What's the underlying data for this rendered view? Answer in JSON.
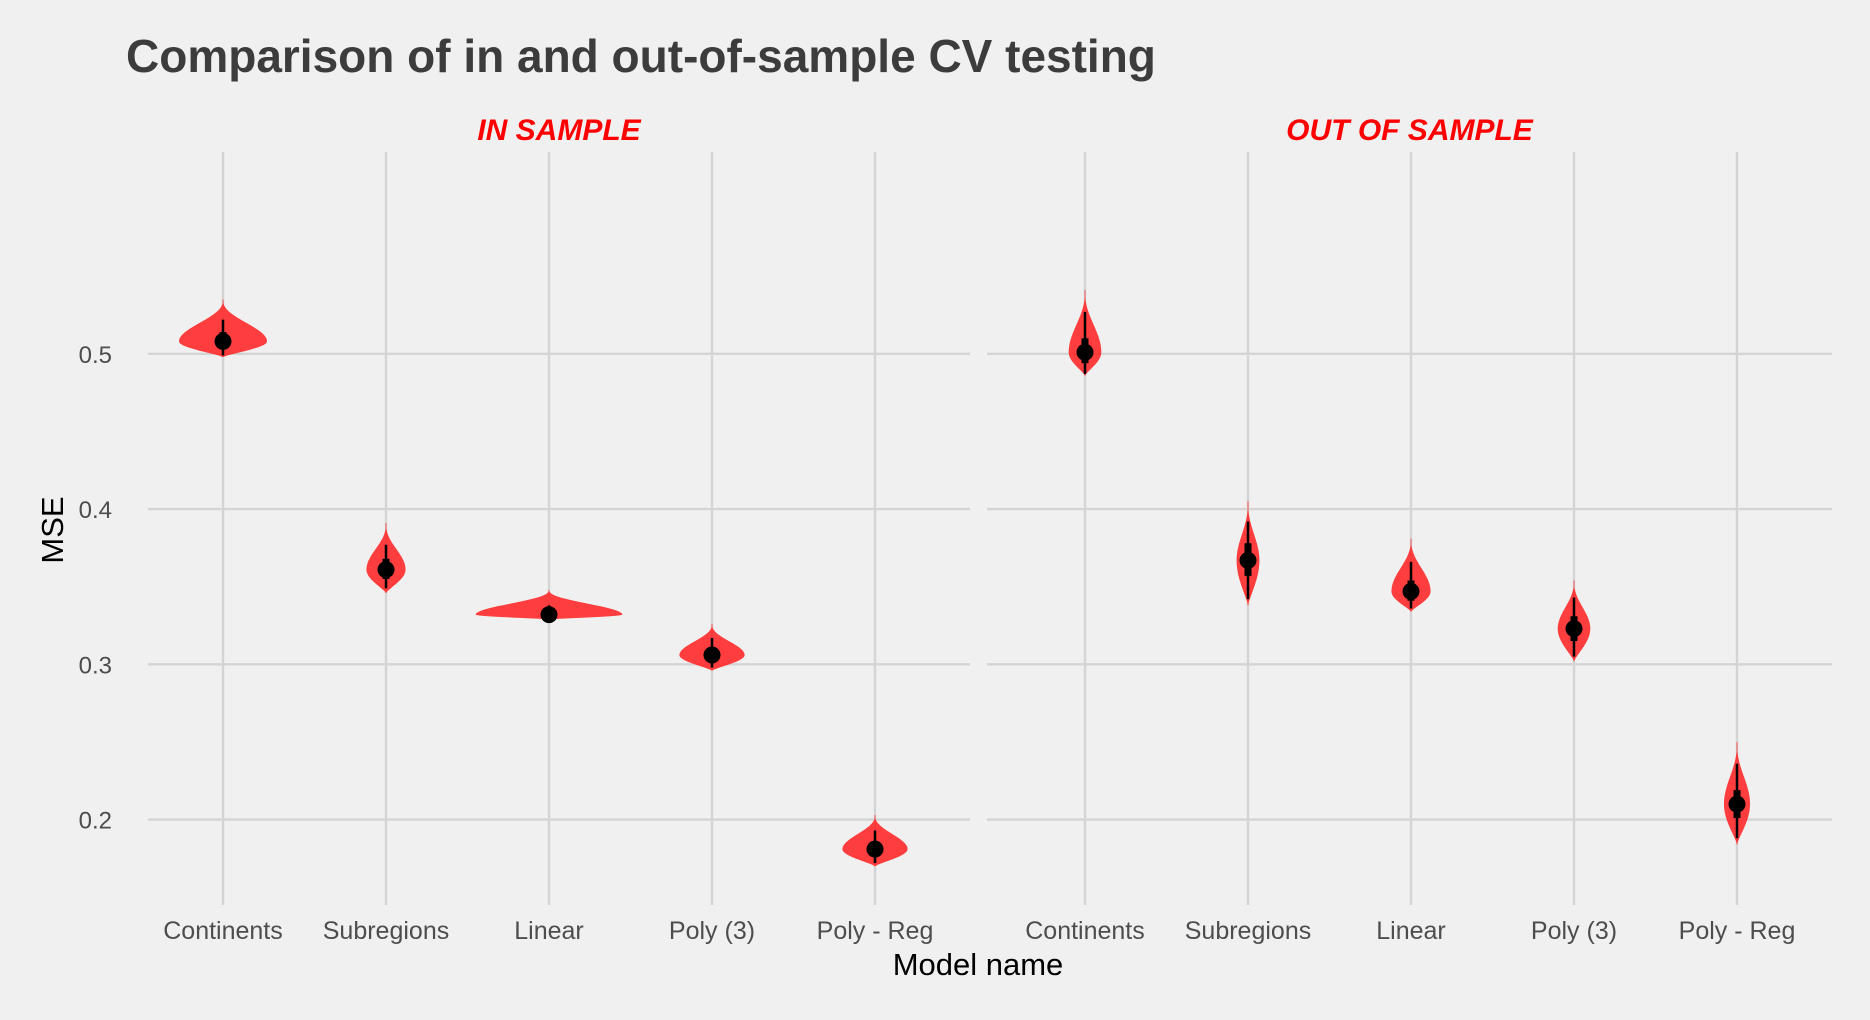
{
  "chart_data": {
    "type": "violin",
    "title": "Comparison of in and out-of-sample CV testing",
    "xlabel": "Model name",
    "ylabel": "MSE",
    "ylim": [
      0.145,
      0.63
    ],
    "yticks": [
      "0.2",
      "0.3",
      "0.4",
      "0.5"
    ],
    "ytick_values": [
      0.2,
      0.3,
      0.4,
      0.5
    ],
    "categories": [
      "Continents",
      "Subregions",
      "Linear",
      "Poly (3)",
      "Poly - Reg"
    ],
    "grid": true,
    "legend": "none",
    "colors": {
      "violin": "#ff2a2a",
      "point": "#000000",
      "strip_text": "#ff0000"
    },
    "panels": [
      {
        "label": "IN SAMPLE",
        "series": [
          {
            "category": "Continents",
            "center": 0.508,
            "min": 0.498,
            "max": 0.535,
            "halfwidth": 0.27,
            "q1": 0.503,
            "q3": 0.514,
            "whisker_lo": 0.499,
            "whisker_hi": 0.522
          },
          {
            "category": "Subregions",
            "center": 0.361,
            "min": 0.346,
            "max": 0.391,
            "halfwidth": 0.12,
            "q1": 0.355,
            "q3": 0.368,
            "whisker_lo": 0.349,
            "whisker_hi": 0.377
          },
          {
            "category": "Linear",
            "center": 0.332,
            "min": 0.329,
            "max": 0.348,
            "halfwidth": 0.45,
            "q1": 0.33,
            "q3": 0.334,
            "whisker_lo": 0.329,
            "whisker_hi": 0.338
          },
          {
            "category": "Poly (3)",
            "center": 0.306,
            "min": 0.296,
            "max": 0.326,
            "halfwidth": 0.2,
            "q1": 0.302,
            "q3": 0.311,
            "whisker_lo": 0.298,
            "whisker_hi": 0.317
          },
          {
            "category": "Poly - Reg",
            "center": 0.181,
            "min": 0.17,
            "max": 0.203,
            "halfwidth": 0.2,
            "q1": 0.177,
            "q3": 0.186,
            "whisker_lo": 0.172,
            "whisker_hi": 0.193
          }
        ]
      },
      {
        "label": "OUT OF SAMPLE",
        "series": [
          {
            "category": "Continents",
            "center": 0.501,
            "min": 0.486,
            "max": 0.541,
            "halfwidth": 0.1,
            "q1": 0.494,
            "q3": 0.51,
            "whisker_lo": 0.487,
            "whisker_hi": 0.527
          },
          {
            "category": "Subregions",
            "center": 0.367,
            "min": 0.338,
            "max": 0.405,
            "halfwidth": 0.07,
            "q1": 0.357,
            "q3": 0.378,
            "whisker_lo": 0.342,
            "whisker_hi": 0.392
          },
          {
            "category": "Linear",
            "center": 0.347,
            "min": 0.334,
            "max": 0.381,
            "halfwidth": 0.12,
            "q1": 0.341,
            "q3": 0.354,
            "whisker_lo": 0.336,
            "whisker_hi": 0.366
          },
          {
            "category": "Poly (3)",
            "center": 0.323,
            "min": 0.302,
            "max": 0.354,
            "halfwidth": 0.1,
            "q1": 0.315,
            "q3": 0.331,
            "whisker_lo": 0.305,
            "whisker_hi": 0.343
          },
          {
            "category": "Poly - Reg",
            "center": 0.21,
            "min": 0.184,
            "max": 0.25,
            "halfwidth": 0.08,
            "q1": 0.201,
            "q3": 0.219,
            "whisker_lo": 0.188,
            "whisker_hi": 0.236
          }
        ]
      }
    ]
  }
}
